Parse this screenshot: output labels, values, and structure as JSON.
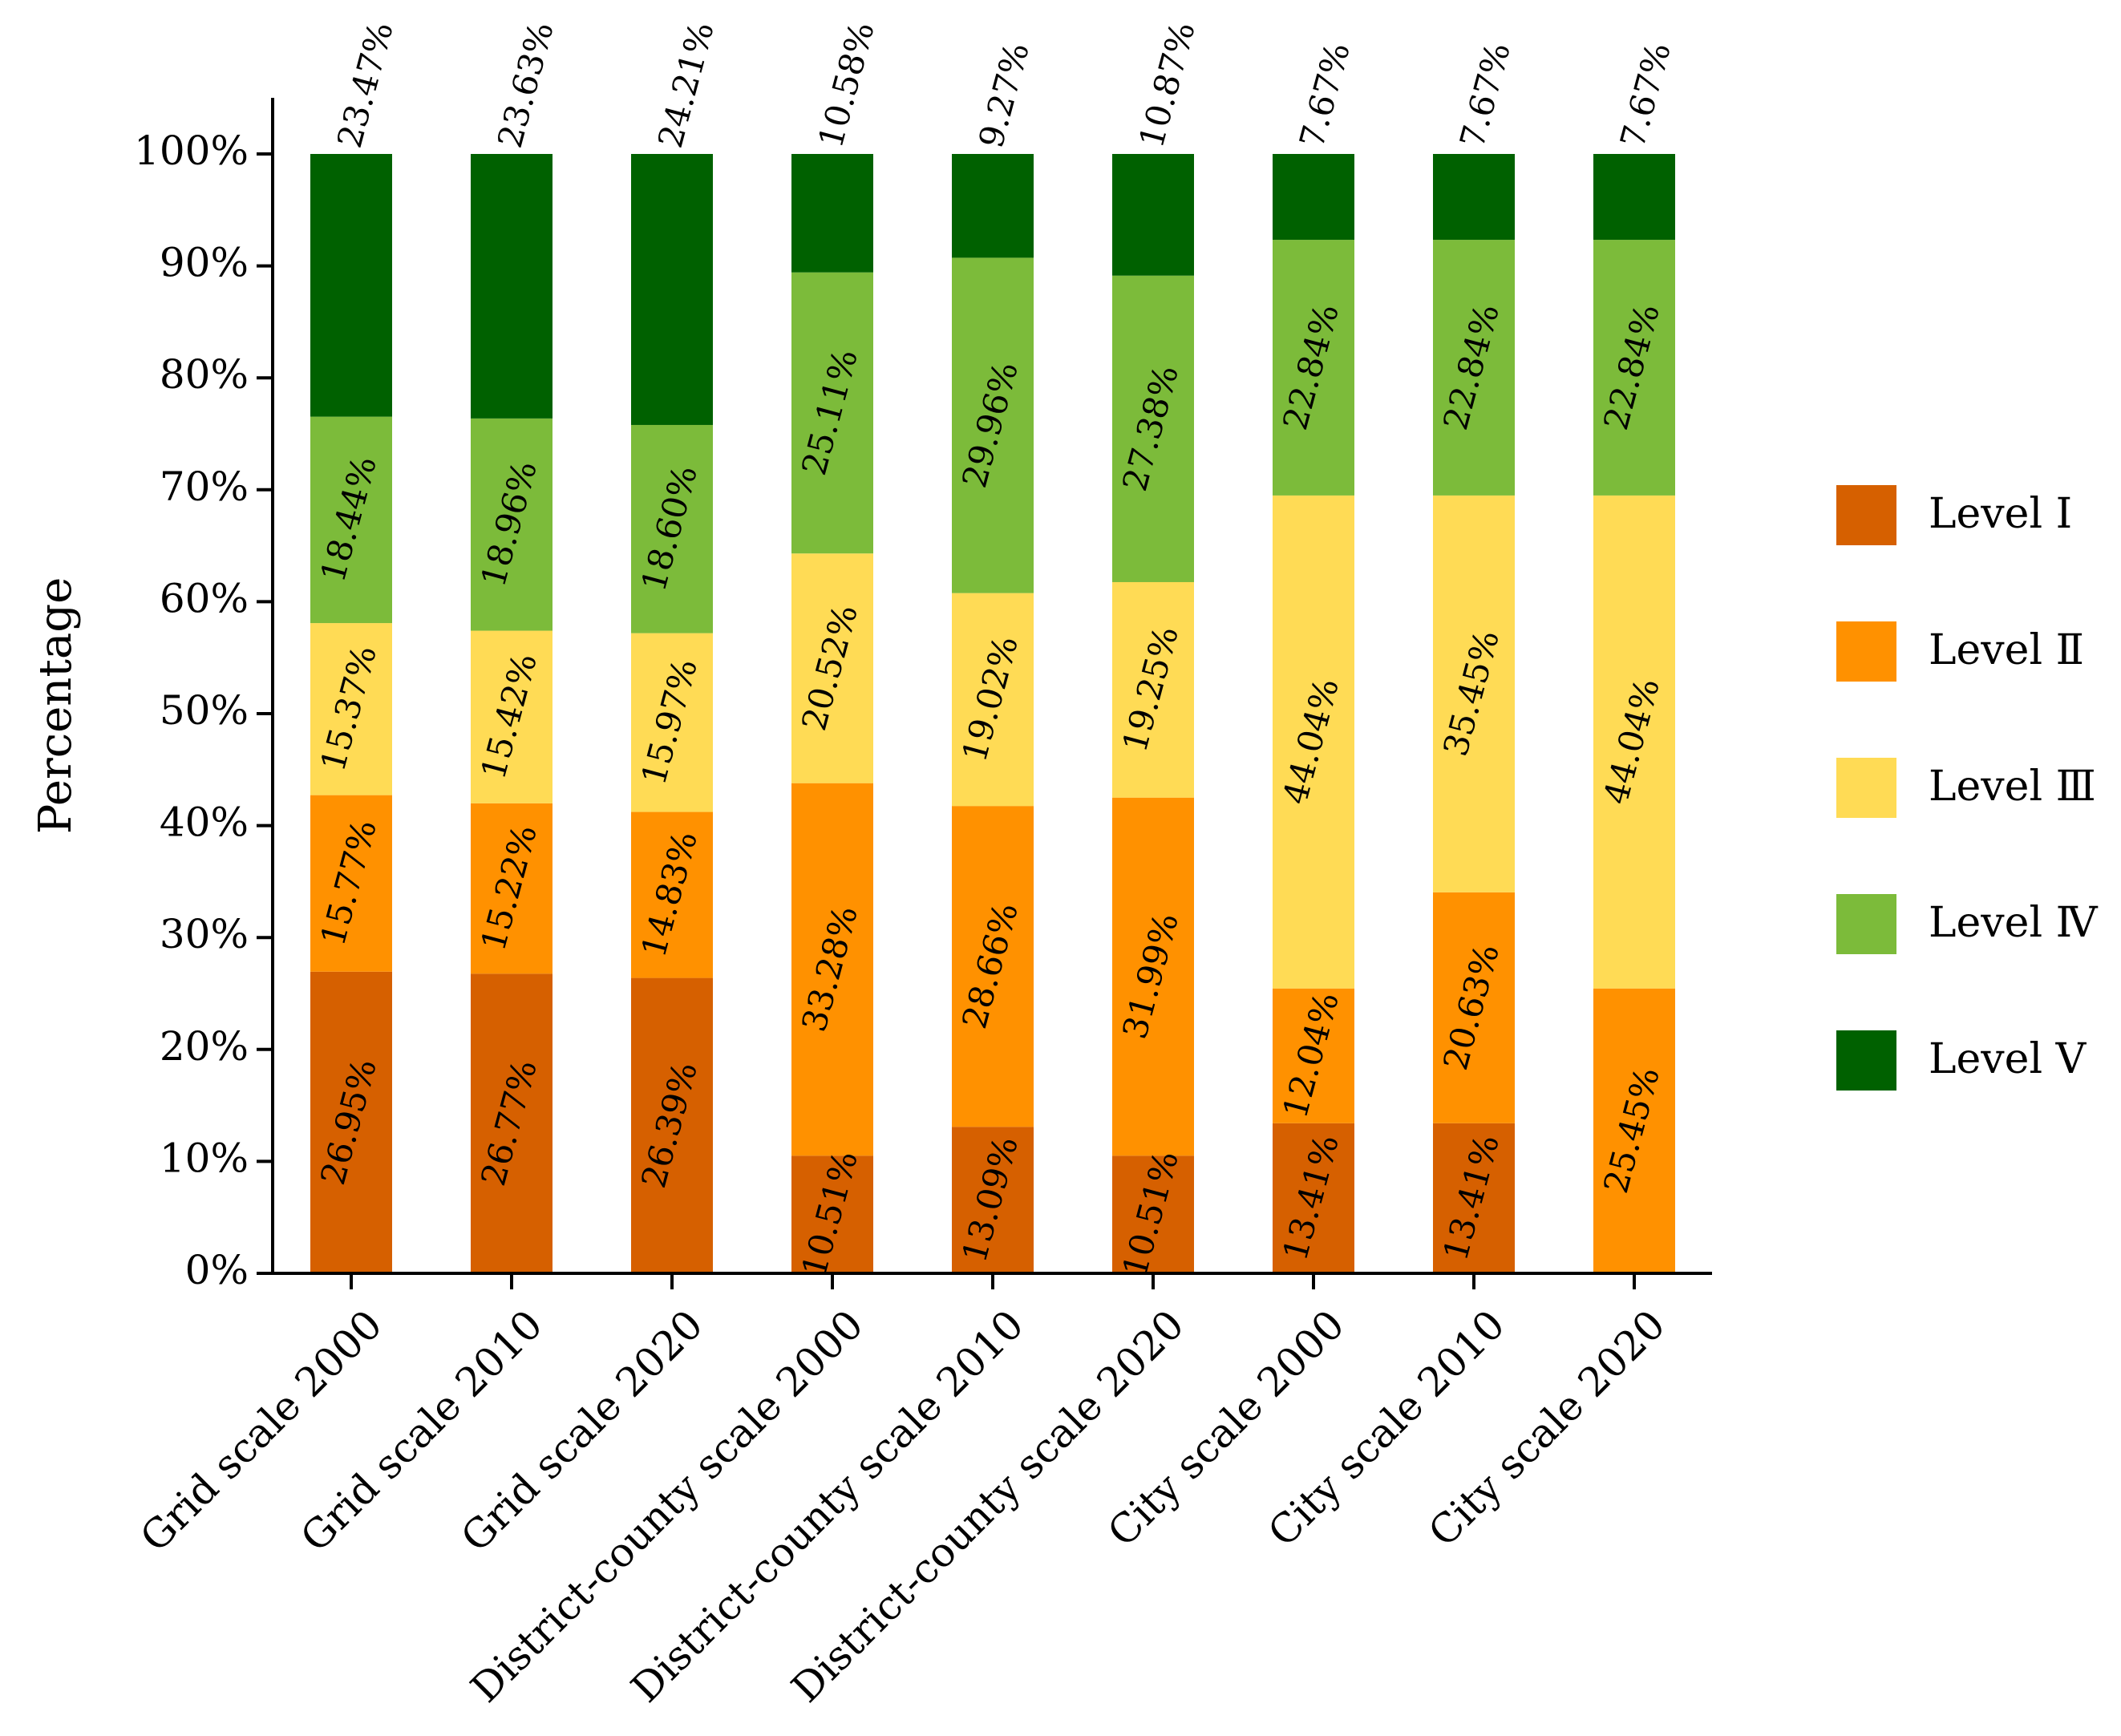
{
  "chart_data": {
    "type": "bar",
    "stacked": true,
    "title": "",
    "xlabel": "",
    "ylabel": "Percentage",
    "ylim": [
      0,
      100
    ],
    "yticks": [
      "0%",
      "10%",
      "20%",
      "30%",
      "40%",
      "50%",
      "60%",
      "70%",
      "80%",
      "90%",
      "100%"
    ],
    "legend_position": "right",
    "grid": false,
    "categories": [
      "Grid scale 2000",
      "Grid scale 2010",
      "Grid scale 2020",
      "District-county scale 2000",
      "District-county scale 2010",
      "District-county scale 2020",
      "City scale 2000",
      "City scale 2010",
      "City scale 2020"
    ],
    "series": [
      {
        "name": "Level Ⅰ",
        "color": "#d66000",
        "values": [
          26.95,
          26.77,
          26.39,
          10.51,
          13.09,
          10.51,
          13.41,
          13.41,
          0
        ],
        "labels": [
          "26.95%",
          "26.77%",
          "26.39%",
          "10.51%",
          "13.09%",
          "10.51%",
          "13.41%",
          "13.41%",
          ""
        ]
      },
      {
        "name": "Level Ⅱ",
        "color": "#ff9100",
        "values": [
          15.77,
          15.22,
          14.83,
          33.28,
          28.66,
          31.99,
          12.04,
          20.63,
          25.45
        ],
        "labels": [
          "15.77%",
          "15.22%",
          "14.83%",
          "33.28%",
          "28.66%",
          "31.99%",
          "12.04%",
          "20.63%",
          "25.45%"
        ]
      },
      {
        "name": "Level Ⅲ",
        "color": "#ffdb55",
        "values": [
          15.37,
          15.42,
          15.97,
          20.52,
          19.02,
          19.25,
          44.04,
          35.45,
          44.04
        ],
        "labels": [
          "15.37%",
          "15.42%",
          "15.97%",
          "20.52%",
          "19.02%",
          "19.25%",
          "44.04%",
          "35.45%",
          "44.04%"
        ]
      },
      {
        "name": "Level Ⅳ",
        "color": "#7cbb3a",
        "values": [
          18.44,
          18.96,
          18.6,
          25.11,
          29.96,
          27.38,
          22.84,
          22.84,
          22.84
        ],
        "labels": [
          "18.44%",
          "18.96%",
          "18.60%",
          "25.11%",
          "29.96%",
          "27.38%",
          "22.84%",
          "22.84%",
          "22.84%"
        ]
      },
      {
        "name": "Level Ⅴ",
        "color": "#006100",
        "values": [
          23.47,
          23.63,
          24.21,
          10.58,
          9.27,
          10.87,
          7.67,
          7.67,
          7.67
        ],
        "labels": [
          "23.47%",
          "23.63%",
          "24.21%",
          "10.58%",
          "9.27%",
          "10.87%",
          "7.67%",
          "7.67%",
          "7.67%"
        ]
      }
    ]
  }
}
